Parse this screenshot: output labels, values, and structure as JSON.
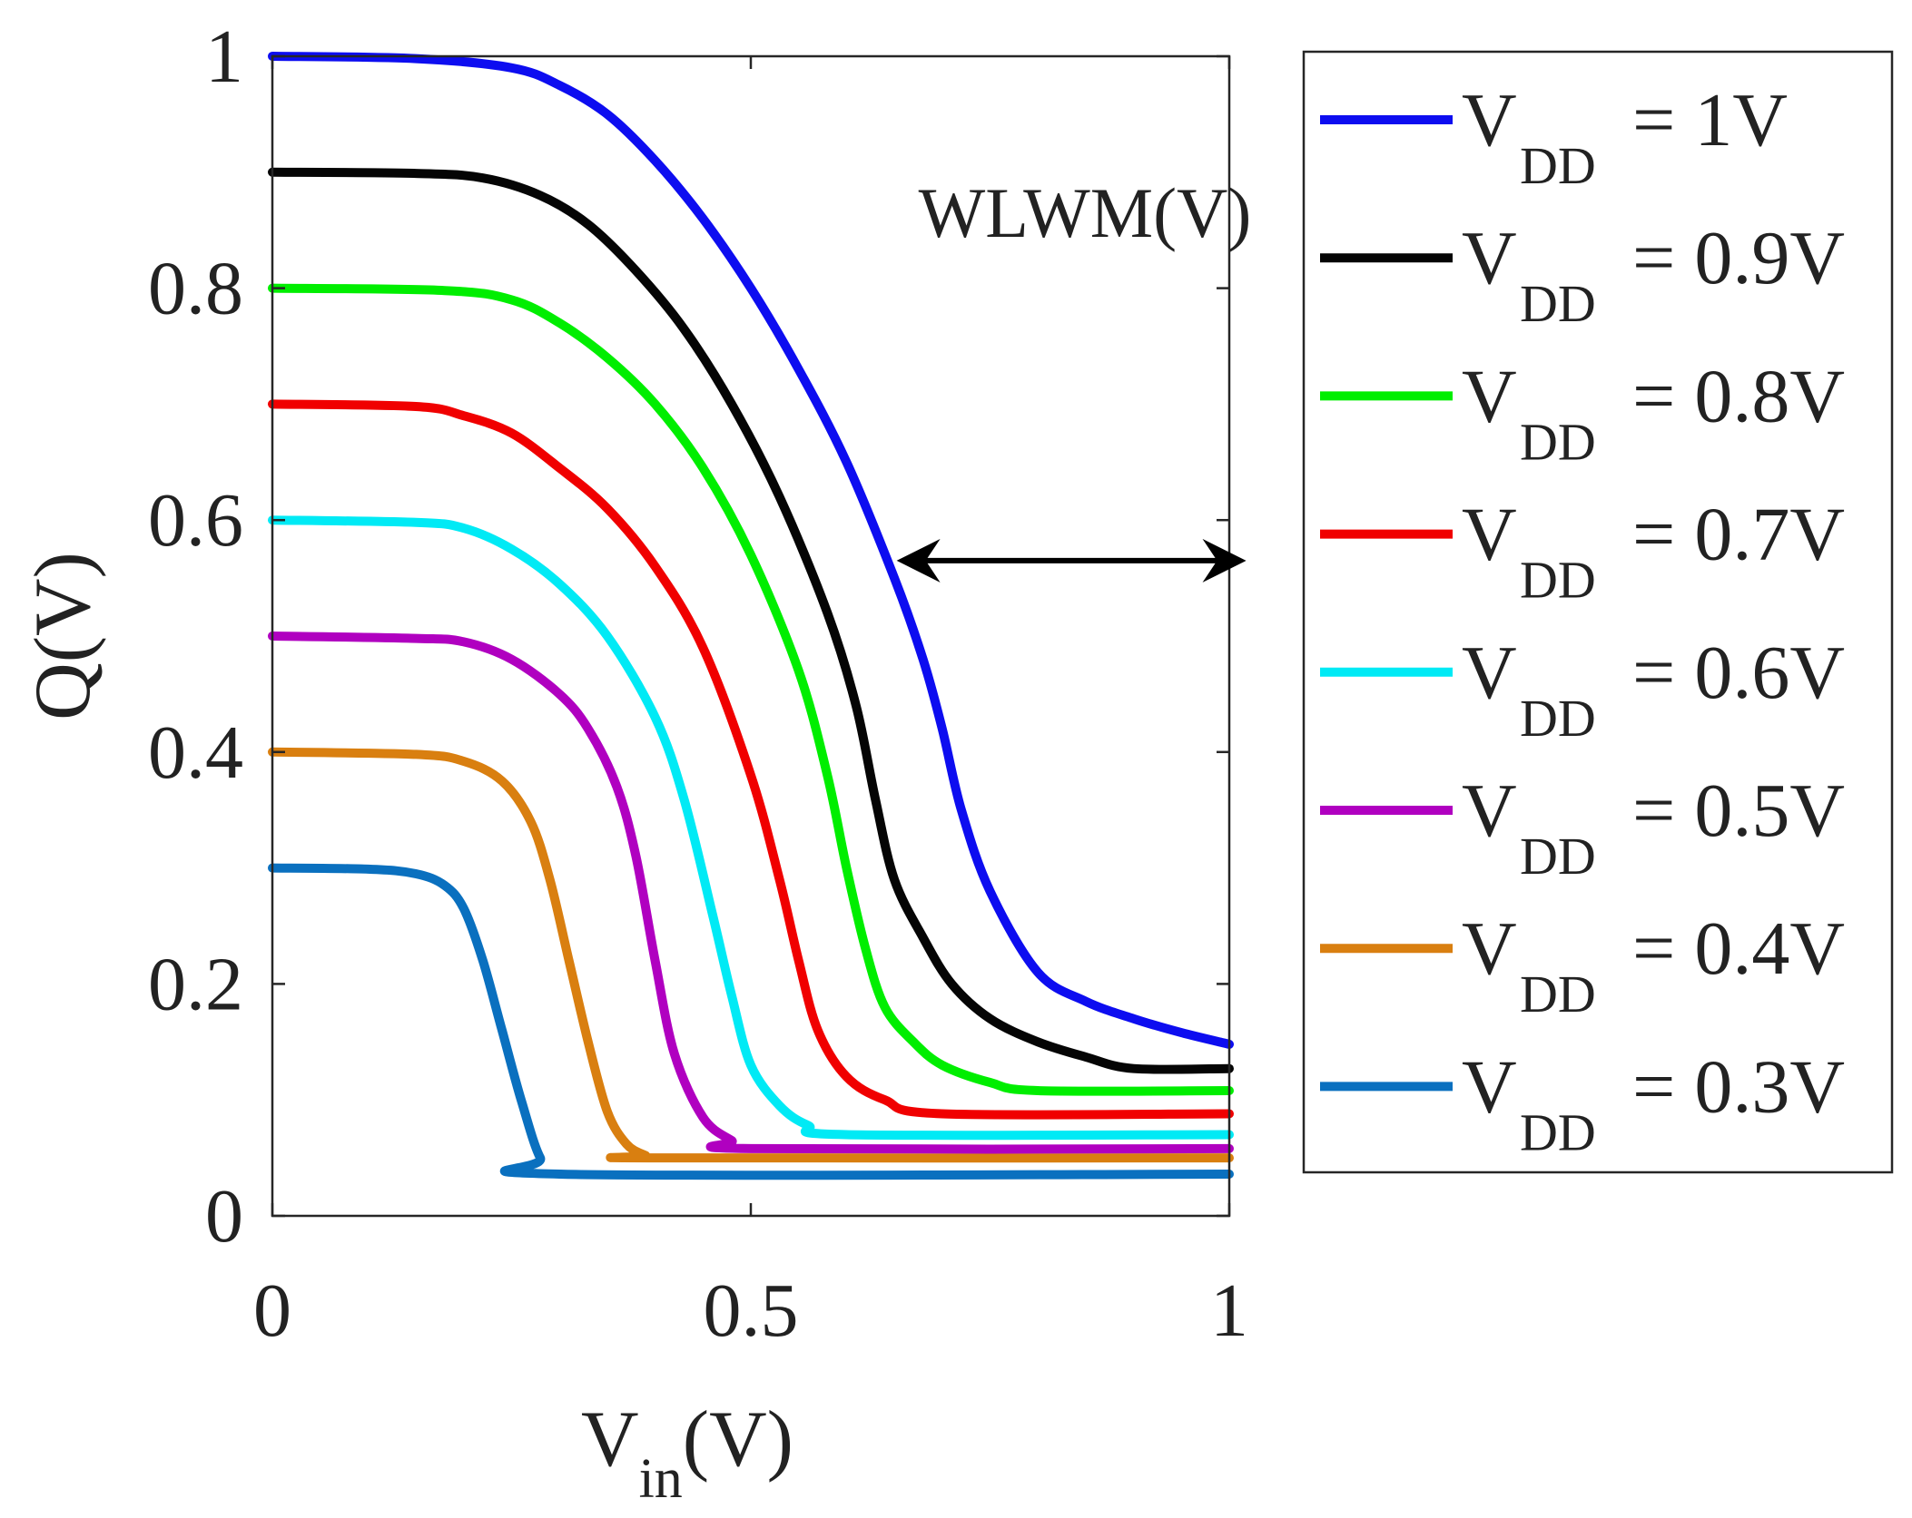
{
  "chart_data": {
    "type": "line",
    "xlabel": {
      "main": "V",
      "sub": "in",
      "suffix": "(V)"
    },
    "ylabel": "Q(V)",
    "xlim": [
      0,
      1
    ],
    "ylim": [
      0,
      1
    ],
    "grid": false,
    "legend_position": "right, outside plot",
    "x_ticks": [
      {
        "value": 0,
        "label": "0"
      },
      {
        "value": 0.5,
        "label": "0.5"
      },
      {
        "value": 1,
        "label": "1"
      }
    ],
    "y_ticks": [
      {
        "value": 0,
        "label": "0"
      },
      {
        "value": 0.2,
        "label": "0.2"
      },
      {
        "value": 0.4,
        "label": "0.4"
      },
      {
        "value": 0.6,
        "label": "0.6"
      },
      {
        "value": 0.8,
        "label": "0.8"
      },
      {
        "value": 1,
        "label": "1"
      }
    ],
    "annotations": [
      {
        "text": "WLWM(V)",
        "anchor_x": 0.66,
        "anchor_y": 0.86,
        "arrow": {
          "from": [
            0.66,
            0.565
          ],
          "to": [
            1.01,
            0.565
          ],
          "double_headed": true
        }
      }
    ],
    "series": [
      {
        "name": "VDD = 1V",
        "legend_main": "V",
        "legend_sub": "DD",
        "legend_value": "= 1V",
        "color": "#0d0df0",
        "x": [
          0,
          0.15,
          0.25,
          0.3,
          0.35,
          0.4,
          0.45,
          0.5,
          0.55,
          0.6,
          0.65,
          0.68,
          0.7,
          0.72,
          0.75,
          0.8,
          0.85,
          0.9,
          0.95,
          1.0
        ],
        "y": [
          1.0,
          0.998,
          0.99,
          0.975,
          0.95,
          0.91,
          0.86,
          0.8,
          0.73,
          0.65,
          0.55,
          0.48,
          0.42,
          0.35,
          0.28,
          0.21,
          0.185,
          0.17,
          0.158,
          0.148
        ]
      },
      {
        "name": "VDD = 0.9V",
        "legend_main": "V",
        "legend_sub": "DD",
        "legend_value": "= 0.9V",
        "color": "#050505",
        "x": [
          0,
          0.15,
          0.22,
          0.28,
          0.33,
          0.38,
          0.43,
          0.48,
          0.53,
          0.58,
          0.61,
          0.63,
          0.65,
          0.68,
          0.71,
          0.75,
          0.8,
          0.85,
          0.9,
          1.0
        ],
        "y": [
          0.9,
          0.899,
          0.895,
          0.88,
          0.855,
          0.815,
          0.765,
          0.7,
          0.62,
          0.52,
          0.44,
          0.36,
          0.29,
          0.24,
          0.2,
          0.17,
          0.15,
          0.137,
          0.127,
          0.127
        ]
      },
      {
        "name": "VDD = 0.8V",
        "legend_main": "V",
        "legend_sub": "DD",
        "legend_value": "= 0.8V",
        "color": "#00ee00",
        "x": [
          0,
          0.18,
          0.25,
          0.3,
          0.35,
          0.4,
          0.45,
          0.5,
          0.55,
          0.58,
          0.6,
          0.62,
          0.64,
          0.67,
          0.7,
          0.75,
          0.8,
          1.0
        ],
        "y": [
          0.8,
          0.798,
          0.79,
          0.77,
          0.74,
          0.7,
          0.645,
          0.57,
          0.47,
          0.38,
          0.3,
          0.23,
          0.18,
          0.15,
          0.13,
          0.115,
          0.108,
          0.108
        ]
      },
      {
        "name": "VDD = 0.7V",
        "legend_main": "V",
        "legend_sub": "DD",
        "legend_value": "= 0.7V",
        "color": "#f00000",
        "x": [
          0,
          0.15,
          0.2,
          0.25,
          0.3,
          0.35,
          0.4,
          0.45,
          0.5,
          0.53,
          0.55,
          0.57,
          0.6,
          0.64,
          0.7,
          1.0
        ],
        "y": [
          0.7,
          0.698,
          0.69,
          0.675,
          0.645,
          0.61,
          0.56,
          0.49,
          0.38,
          0.29,
          0.22,
          0.16,
          0.12,
          0.1,
          0.088,
          0.088
        ]
      },
      {
        "name": "VDD = 0.6V",
        "legend_main": "V",
        "legend_sub": "DD",
        "legend_value": "= 0.6V",
        "color": "#00eaf5",
        "x": [
          0,
          0.15,
          0.2,
          0.25,
          0.3,
          0.35,
          0.4,
          0.43,
          0.46,
          0.48,
          0.5,
          0.53,
          0.56,
          0.6,
          1.0
        ],
        "y": [
          0.6,
          0.598,
          0.593,
          0.575,
          0.545,
          0.5,
          0.43,
          0.36,
          0.26,
          0.19,
          0.13,
          0.095,
          0.078,
          0.07,
          0.07
        ]
      },
      {
        "name": "VDD = 0.5V",
        "legend_main": "V",
        "legend_sub": "DD",
        "legend_value": "= 0.5V",
        "color": "#b000c0",
        "x": [
          0,
          0.15,
          0.2,
          0.25,
          0.3,
          0.33,
          0.36,
          0.38,
          0.4,
          0.42,
          0.45,
          0.48,
          0.5,
          1.0
        ],
        "y": [
          0.5,
          0.498,
          0.495,
          0.48,
          0.45,
          0.42,
          0.37,
          0.31,
          0.22,
          0.14,
          0.085,
          0.065,
          0.058,
          0.058
        ]
      },
      {
        "name": "VDD = 0.4V",
        "legend_main": "V",
        "legend_sub": "DD",
        "legend_value": "= 0.4V",
        "color": "#d97f10",
        "x": [
          0,
          0.15,
          0.2,
          0.24,
          0.27,
          0.29,
          0.31,
          0.33,
          0.35,
          0.37,
          0.39,
          0.4,
          1.0
        ],
        "y": [
          0.4,
          0.398,
          0.392,
          0.375,
          0.34,
          0.29,
          0.22,
          0.15,
          0.09,
          0.062,
          0.052,
          0.05,
          0.05
        ]
      },
      {
        "name": "VDD = 0.3V",
        "legend_main": "V",
        "legend_sub": "DD",
        "legend_value": "= 0.3V",
        "color": "#0a70bf",
        "x": [
          0,
          0.1,
          0.15,
          0.18,
          0.2,
          0.22,
          0.24,
          0.26,
          0.28,
          0.3,
          1.0
        ],
        "y": [
          0.3,
          0.299,
          0.295,
          0.285,
          0.265,
          0.22,
          0.16,
          0.1,
          0.05,
          0.036,
          0.036
        ]
      }
    ]
  }
}
